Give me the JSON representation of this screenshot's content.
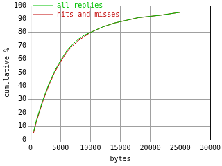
{
  "chart_data": {
    "type": "line",
    "x_label": "bytes",
    "y_label": "cumulative %",
    "x": [
      500,
      1000,
      2000,
      3000,
      4000,
      5000,
      6000,
      7000,
      8000,
      9000,
      10000,
      12000,
      14000,
      16000,
      18000,
      20000,
      22000,
      25000
    ],
    "series": [
      {
        "name": "all replies",
        "color": "#00c000",
        "values": [
          6,
          15,
          29,
          41,
          51,
          59,
          66,
          71,
          75,
          78,
          80,
          84,
          87,
          89,
          91,
          92,
          93,
          95
        ]
      },
      {
        "name": "hits and misses",
        "color": "#c00000",
        "values": [
          5,
          14,
          28,
          40,
          50,
          58,
          65,
          70,
          74,
          77,
          80,
          84,
          87,
          89,
          91,
          92,
          93,
          95
        ]
      }
    ],
    "xlim": [
      0,
      30000
    ],
    "xticks": [
      0,
      5000,
      10000,
      15000,
      20000,
      25000,
      30000
    ],
    "ylim": [
      0,
      100
    ],
    "yticks": [
      0,
      10,
      20,
      30,
      40,
      50,
      60,
      70,
      80,
      90,
      100
    ],
    "grid": true,
    "legend": "upper left"
  }
}
